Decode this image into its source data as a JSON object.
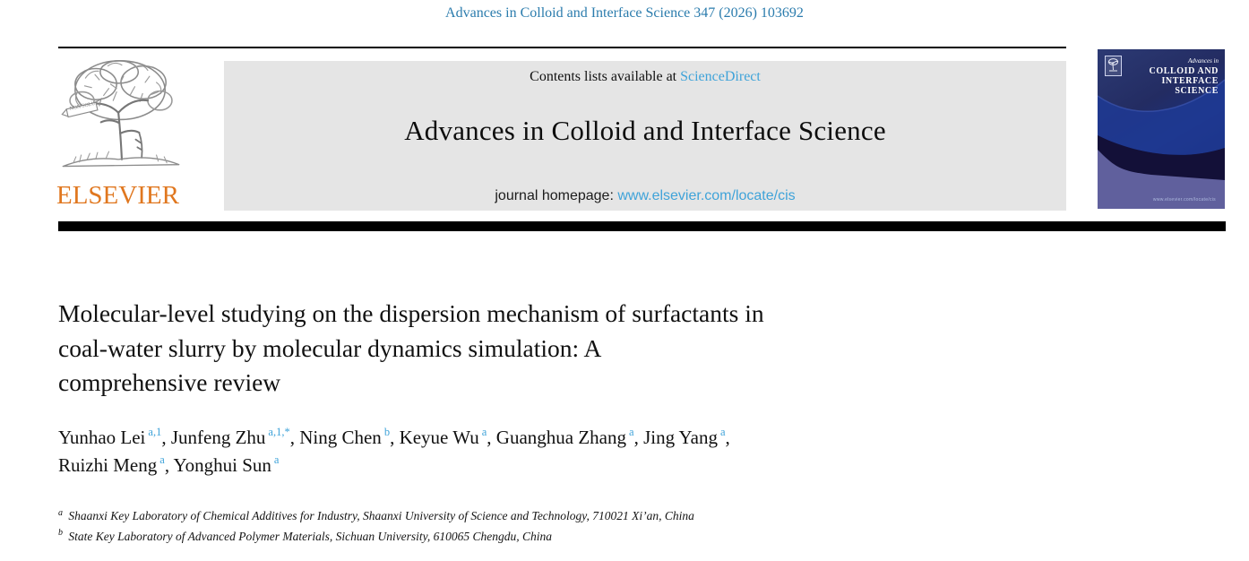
{
  "page": {
    "journal_citation": "Advances in Colloid and Interface Science 347 (2026) 103692"
  },
  "masthead": {
    "contents_prefix": "Contents lists available at ",
    "contents_link": "ScienceDirect",
    "journal_title": "Advances in Colloid and Interface Science",
    "homepage_prefix": "journal homepage: ",
    "homepage_link": "www.elsevier.com/locate/cis",
    "publisher": {
      "wordmark": "ELSEVIER",
      "logo": "elsevier-tree-logo",
      "logo_motto": "NON SOLUS"
    },
    "cover": {
      "title_prefix": "Advances in",
      "title_lines": [
        "COLLOID AND",
        "INTERFACE",
        "SCIENCE"
      ],
      "footer_url": "www.elsevier.com/locate/cis"
    }
  },
  "article": {
    "title": "Molecular-level studying on the dispersion mechanism of surfactants in coal-water slurry by molecular dynamics simulation: A comprehensive review",
    "title_lines": [
      "Molecular-level studying on the dispersion mechanism of surfactants in",
      "coal-water slurry by molecular dynamics simulation: A",
      "comprehensive review"
    ],
    "authors": [
      {
        "name": "Yunhao Lei",
        "sup": "a,1"
      },
      {
        "name": "Junfeng Zhu",
        "sup": "a,1,*"
      },
      {
        "name": "Ning Chen",
        "sup": "b"
      },
      {
        "name": "Keyue Wu",
        "sup": "a"
      },
      {
        "name": "Guanghua Zhang",
        "sup": "a"
      },
      {
        "name": "Jing Yang",
        "sup": "a",
        "break_after": true
      },
      {
        "name": "Ruizhi Meng",
        "sup": "a"
      },
      {
        "name": "Yonghui Sun",
        "sup": "a"
      }
    ],
    "affiliations": [
      {
        "sup": "a",
        "text": "Shaanxi Key Laboratory of Chemical Additives for Industry, Shaanxi University of Science and Technology, 710021 Xi’an, China"
      },
      {
        "sup": "b",
        "text": "State Key Laboratory of Advanced Polymer Materials, Sichuan University, 610065 Chengdu, China"
      }
    ]
  },
  "colors": {
    "citation_blue": "#2b7cad",
    "link_light_blue": "#3fa3d9",
    "elsevier_orange": "#e0771f",
    "masthead_bg": "#e5e5e5",
    "cover_navy": "#232c62",
    "cover_lavender": "#60609d",
    "rule_black": "#000000"
  }
}
